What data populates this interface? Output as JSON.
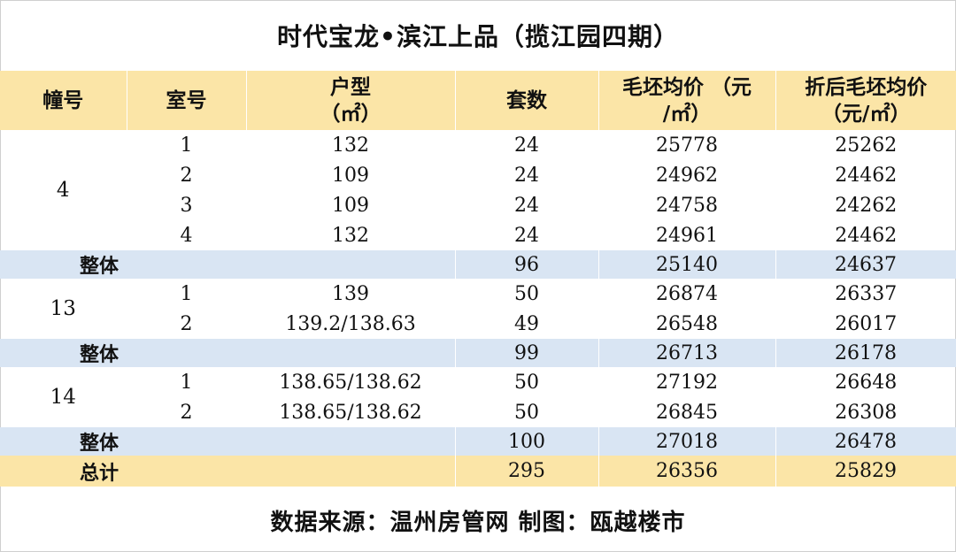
{
  "title": "时代宝龙•滨江上品（揽江园四期）",
  "headers": {
    "building": "幢号",
    "room": "室号",
    "unit_type_line1": "户型",
    "unit_type_line2": "（㎡）",
    "units": "套数",
    "rough_price_line1": "毛坯均价 （元",
    "rough_price_line2": "/㎡）",
    "discount_price_line1": "折后毛坯均价",
    "discount_price_line2": "（元/㎡）"
  },
  "groups": [
    {
      "building": "4",
      "rows": [
        {
          "room": "1",
          "area": "132",
          "units": "24",
          "rough": "25778",
          "discount": "25262"
        },
        {
          "room": "2",
          "area": "109",
          "units": "24",
          "rough": "24962",
          "discount": "24462"
        },
        {
          "room": "3",
          "area": "109",
          "units": "24",
          "rough": "24758",
          "discount": "24262"
        },
        {
          "room": "4",
          "area": "132",
          "units": "24",
          "rough": "24961",
          "discount": "24462"
        }
      ],
      "subtotal": {
        "label": "整体",
        "units": "96",
        "rough": "25140",
        "discount": "24637"
      }
    },
    {
      "building": "13",
      "rows": [
        {
          "room": "1",
          "area": "139",
          "units": "50",
          "rough": "26874",
          "discount": "26337"
        },
        {
          "room": "2",
          "area": "139.2/138.63",
          "units": "49",
          "rough": "26548",
          "discount": "26017"
        }
      ],
      "subtotal": {
        "label": "整体",
        "units": "99",
        "rough": "26713",
        "discount": "26178"
      }
    },
    {
      "building": "14",
      "rows": [
        {
          "room": "1",
          "area": "138.65/138.62",
          "units": "50",
          "rough": "27192",
          "discount": "26648"
        },
        {
          "room": "2",
          "area": "138.65/138.62",
          "units": "50",
          "rough": "26845",
          "discount": "26308"
        }
      ],
      "subtotal": {
        "label": "整体",
        "units": "100",
        "rough": "27018",
        "discount": "26478"
      }
    }
  ],
  "total": {
    "label": "总计",
    "units": "295",
    "rough": "26356",
    "discount": "25829"
  },
  "footer": "数据来源：温州房管网  制图：瓯越楼市"
}
